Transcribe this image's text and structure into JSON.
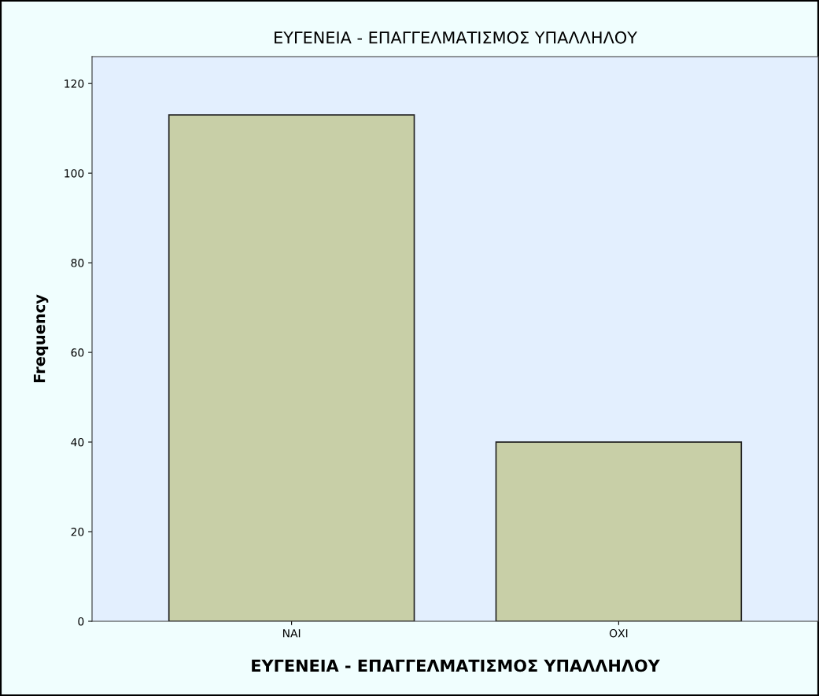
{
  "chart_data": {
    "type": "bar",
    "title": "ΕΥΓΕΝΕΙΑ - ΕΠΑΓΓΕΛΜΑΤΙΣΜΟΣ ΥΠΑΛΛΗΛΟΥ",
    "xlabel": "ΕΥΓΕΝΕΙΑ - ΕΠΑΓΓΕΛΜΑΤΙΣΜΟΣ ΥΠΑΛΛΗΛΟΥ",
    "ylabel": "Frequency",
    "categories": [
      "ΝΑΙ",
      "ΟΧΙ"
    ],
    "values": [
      113,
      40
    ],
    "color": "#c8cfa7",
    "ylim": [
      0,
      126
    ],
    "yticks": [
      0,
      20,
      40,
      60,
      80,
      100,
      120
    ],
    "grid": false,
    "legend": false
  }
}
